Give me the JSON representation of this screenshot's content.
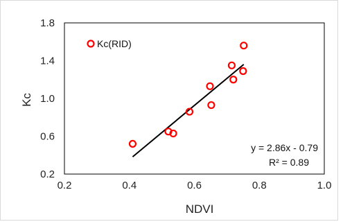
{
  "chart_data": {
    "type": "scatter",
    "xlabel": "NDVI",
    "ylabel": "Kc",
    "xlim": [
      0.2,
      1.0
    ],
    "ylim": [
      0.2,
      1.8
    ],
    "xticks": [
      "0.2",
      "0.4",
      "0.6",
      "0.8",
      "1.0"
    ],
    "yticks": [
      "0.2",
      "0.6",
      "1.0",
      "1.4",
      "1.8"
    ],
    "grid": false,
    "legend_position": "top-left",
    "series": [
      {
        "name": "Kc(RID)",
        "color": "#ff0000",
        "marker": "open-circle",
        "points": [
          {
            "x": 0.41,
            "y": 0.52
          },
          {
            "x": 0.52,
            "y": 0.65
          },
          {
            "x": 0.535,
            "y": 0.63
          },
          {
            "x": 0.585,
            "y": 0.86
          },
          {
            "x": 0.648,
            "y": 1.13
          },
          {
            "x": 0.652,
            "y": 0.93
          },
          {
            "x": 0.715,
            "y": 1.35
          },
          {
            "x": 0.72,
            "y": 1.2
          },
          {
            "x": 0.75,
            "y": 1.29
          },
          {
            "x": 0.752,
            "y": 1.56
          }
        ]
      }
    ],
    "trendline": {
      "slope": 2.86,
      "intercept": -0.79,
      "x_range": [
        0.41,
        0.752
      ],
      "color": "#000000",
      "equation": "y = 2.86x - 0.79",
      "r2": "R² = 0.89"
    }
  }
}
